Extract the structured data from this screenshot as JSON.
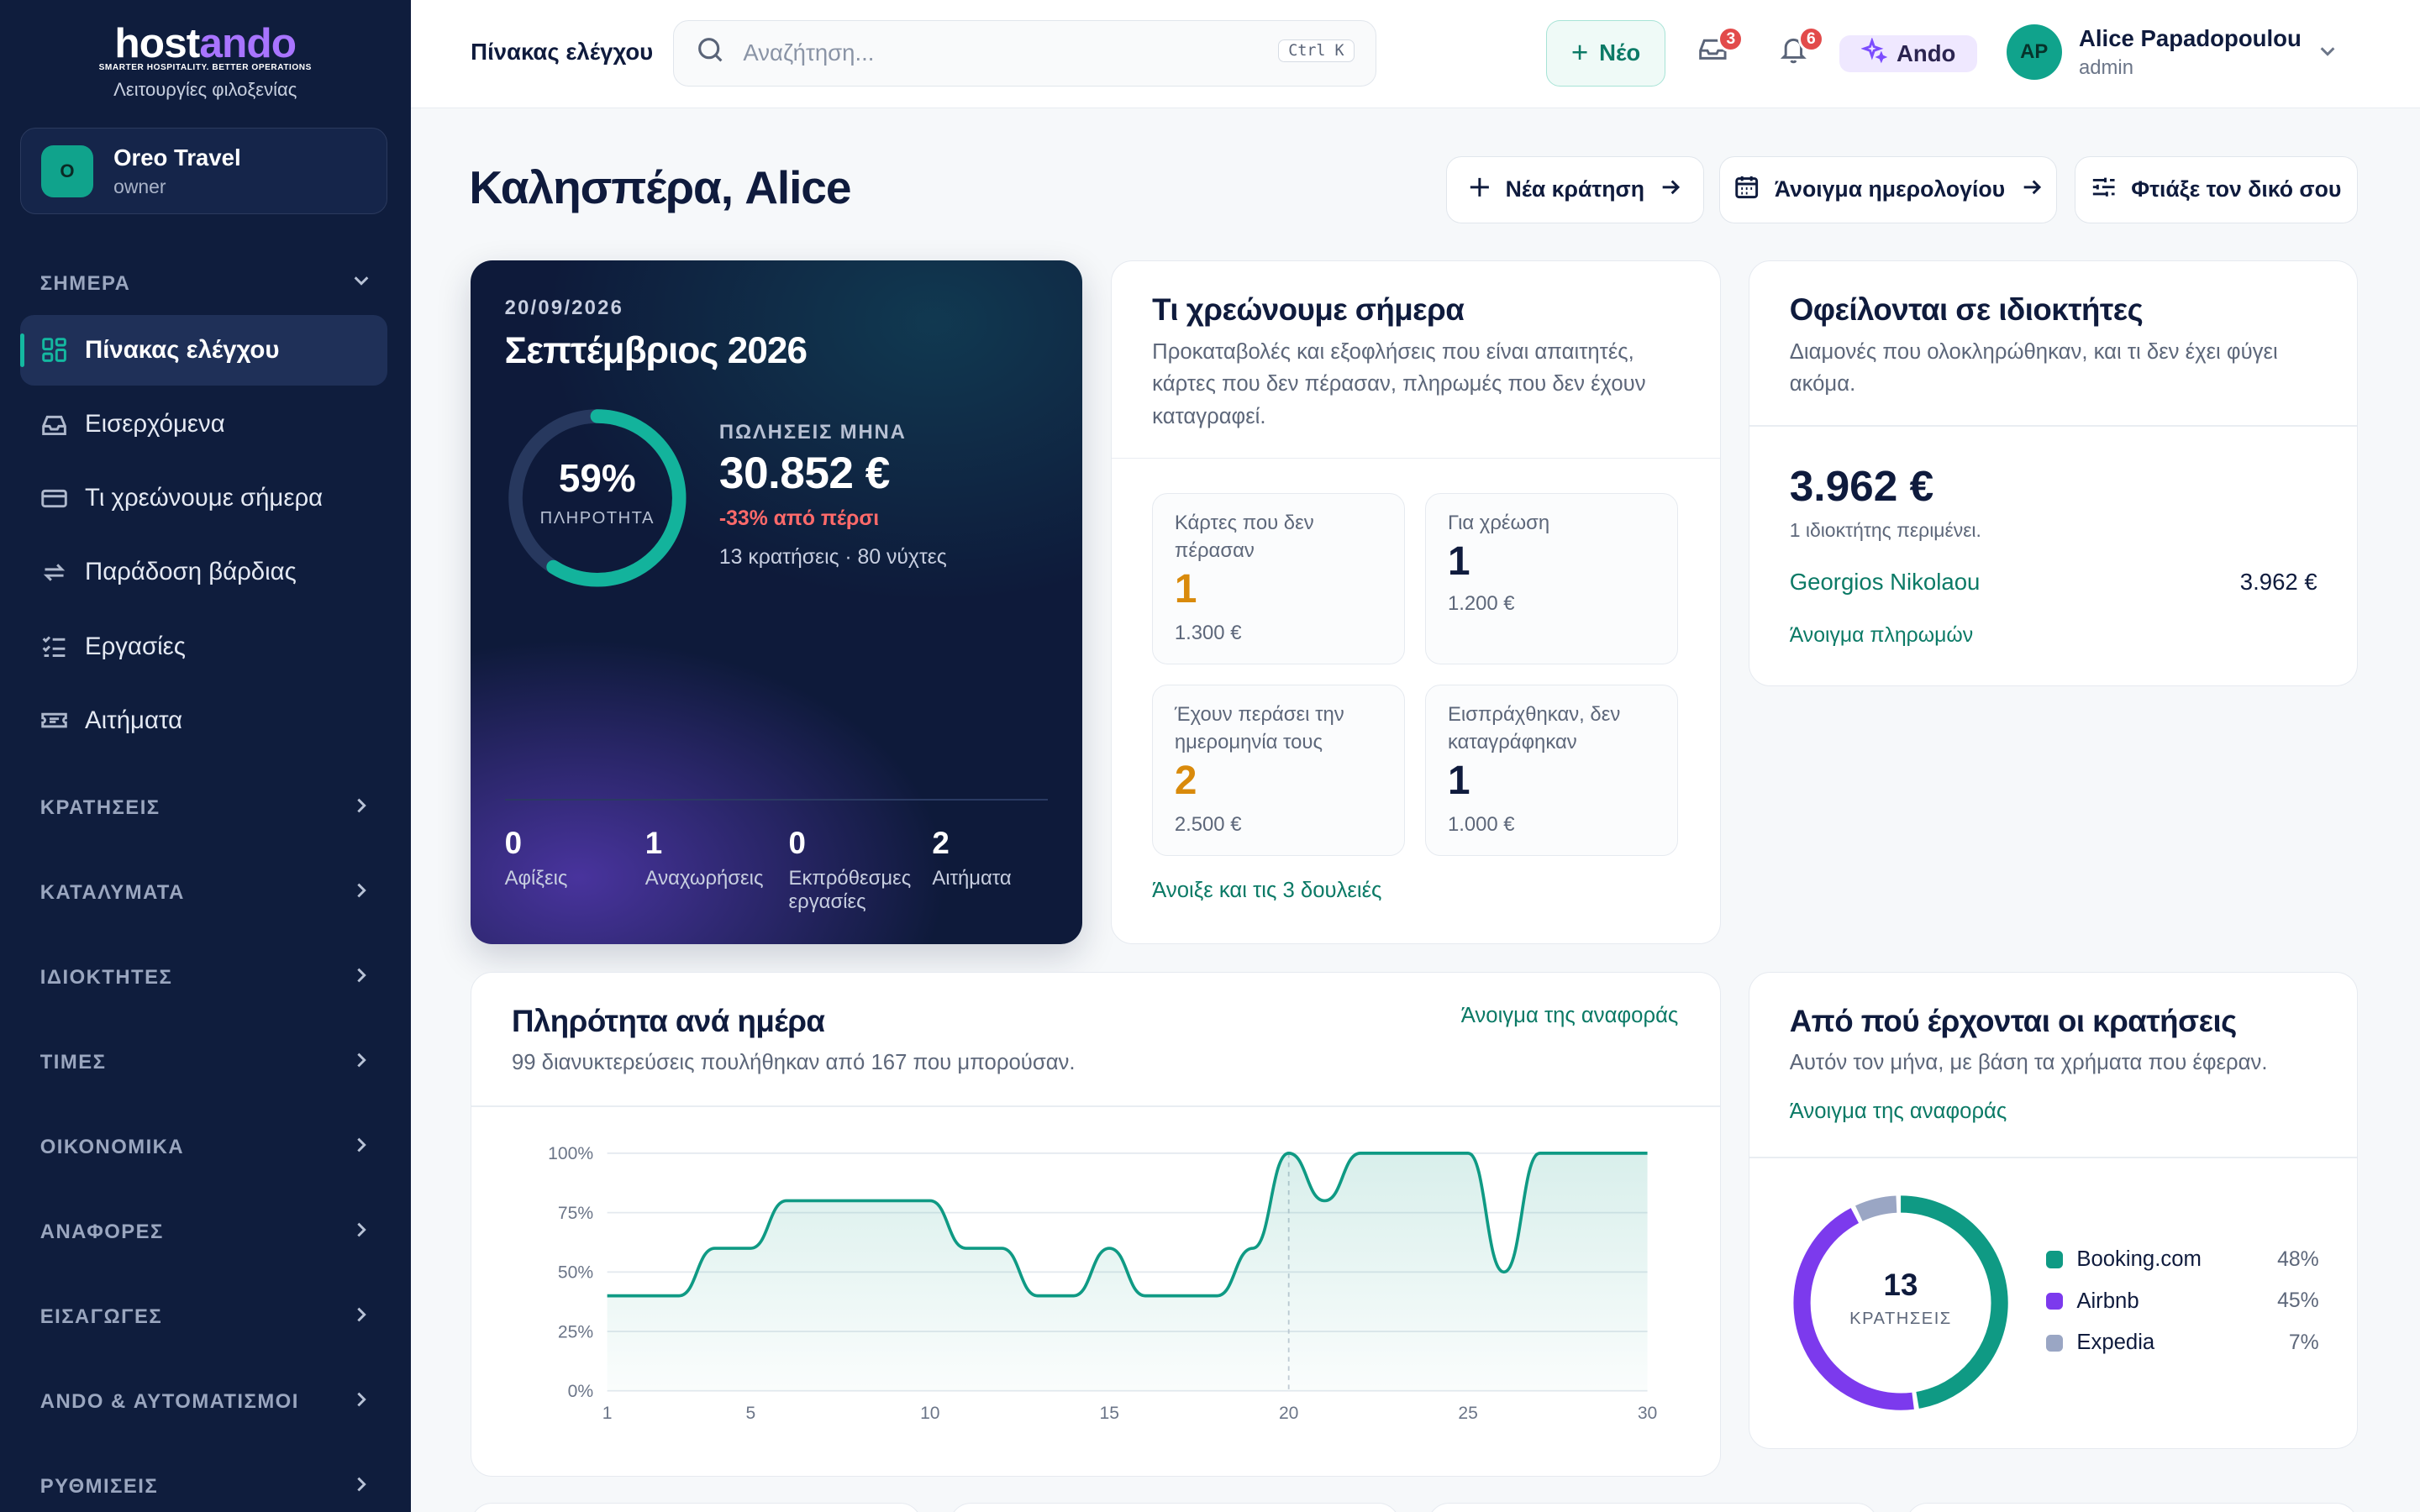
{
  "brand": {
    "logo_a": "host",
    "logo_b": "ando",
    "tagline": "SMARTER HOSPITALITY. BETTER OPERATIONS",
    "subtitle": "Λειτουργίες φιλοξενίας"
  },
  "org": {
    "initial": "O",
    "name": "Oreo Travel",
    "role": "owner"
  },
  "sidebar": {
    "today_section": "ΣΗΜΕΡΑ",
    "items": [
      {
        "label": "Πίνακας ελέγχου",
        "icon": "dashboard-icon",
        "active": true
      },
      {
        "label": "Εισερχόμενα",
        "icon": "inbox-icon"
      },
      {
        "label": "Τι χρεώνουμε σήμερα",
        "icon": "card-icon"
      },
      {
        "label": "Παράδοση βάρδιας",
        "icon": "repeat-icon"
      },
      {
        "label": "Εργασίες",
        "icon": "checklist-icon"
      },
      {
        "label": "Αιτήματα",
        "icon": "ticket-icon"
      }
    ],
    "sections": [
      "ΚΡΑΤΗΣΕΙΣ",
      "ΚΑΤΑΛΥΜΑΤΑ",
      "ΙΔΙΟΚΤΗΤΕΣ",
      "ΤΙΜΕΣ",
      "ΟΙΚΟΝΟΜΙΚΑ",
      "ΑΝΑΦΟΡΕΣ",
      "ΕΙΣΑΓΩΓΕΣ",
      "ANDO & ΑΥΤΟΜΑΤΙΣΜΟΙ",
      "ΡΥΘΜΙΣΕΙΣ"
    ]
  },
  "topbar": {
    "title": "Πίνακας ελέγχου",
    "search_placeholder": "Αναζήτηση...",
    "shortcut": "Ctrl K",
    "new_label": "Νέο",
    "inbox_badge": "3",
    "notif_badge": "6",
    "ando_label": "Ando",
    "user": {
      "initials": "AP",
      "name": "Alice Papadopoulou",
      "role": "admin"
    }
  },
  "header": {
    "greeting": "Καλησπέρα, Alice",
    "btn_new_booking": "Νέα κράτηση",
    "btn_calendar": "Άνοιγμα ημερολογίου",
    "btn_custom": "Φτιάξε τον δικό σου"
  },
  "month_card": {
    "date": "20/09/2026",
    "title": "Σεπτέμβριος 2026",
    "occupancy_pct": "59%",
    "occupancy_value": 0.59,
    "occupancy_label": "ΠΛΗΡΟΤΗΤΑ",
    "sales_label": "ΠΩΛΗΣΕΙΣ ΜΗΝΑ",
    "sales_value": "30.852 €",
    "sales_delta": "-33% από πέρσι",
    "sales_meta": "13 κρατήσεις · 80 νύχτες",
    "kpis": [
      {
        "value": "0",
        "label": "Αφίξεις"
      },
      {
        "value": "1",
        "label": "Αναχωρήσεις"
      },
      {
        "value": "0",
        "label": "Εκπρόθεσμες εργασίες"
      },
      {
        "value": "2",
        "label": "Αιτήματα"
      }
    ]
  },
  "charge_card": {
    "title": "Τι χρεώνουμε σήμερα",
    "subtitle": "Προκαταβολές και εξοφλήσεις που είναι απαιτητές, κάρτες που δεν πέρασαν, πληρωμές που δεν έχουν καταγραφεί.",
    "tiles": [
      {
        "label": "Κάρτες που δεν πέρασαν",
        "count": "1",
        "amount": "1.300 €",
        "color": "#d98a0b"
      },
      {
        "label": "Για χρέωση",
        "count": "1",
        "amount": "1.200 €",
        "color": "#0f1b3d"
      },
      {
        "label": "Έχουν περάσει την ημερομηνία τους",
        "count": "2",
        "amount": "2.500 €",
        "color": "#d98a0b"
      },
      {
        "label": "Εισπράχθηκαν, δεν καταγράφηκαν",
        "count": "1",
        "amount": "1.000 €",
        "color": "#0f1b3d"
      }
    ],
    "link": "Άνοιξε και τις 3 δουλειές"
  },
  "owners_card": {
    "title": "Οφείλονται σε ιδιοκτήτες",
    "subtitle": "Διαμονές που ολοκληρώθηκαν, και τι δεν έχει φύγει ακόμα.",
    "total": "3.962 €",
    "waiting": "1 ιδιοκτήτης περιμένει.",
    "owner_name": "Georgios Nikolaou",
    "owner_amount": "3.962 €",
    "link": "Άνοιγμα πληρωμών"
  },
  "occupancy_card": {
    "title": "Πληρότητα ανά ημέρα",
    "subtitle": "99 διανυκτερεύσεις πουλήθηκαν από 167 που μπορούσαν.",
    "link": "Άνοιγμα της αναφοράς"
  },
  "chart_data": {
    "type": "area",
    "x": [
      1,
      2,
      3,
      4,
      5,
      6,
      7,
      8,
      9,
      10,
      11,
      12,
      13,
      14,
      15,
      16,
      17,
      18,
      19,
      20,
      21,
      22,
      23,
      24,
      25,
      26,
      27,
      28,
      29,
      30
    ],
    "values": [
      40,
      40,
      40,
      60,
      60,
      80,
      80,
      80,
      80,
      80,
      60,
      60,
      40,
      40,
      60,
      40,
      40,
      40,
      60,
      100,
      80,
      100,
      100,
      100,
      100,
      50,
      100,
      100,
      100,
      100
    ],
    "xticks": [
      "1",
      "5",
      "10",
      "15",
      "20",
      "25",
      "30"
    ],
    "yticks": [
      "0%",
      "25%",
      "50%",
      "75%",
      "100%"
    ],
    "ylim": [
      0,
      100
    ],
    "marker_x": 20,
    "color": "#0f9a84"
  },
  "sources_card": {
    "title": "Από πού έρχονται οι κρατήσεις",
    "subtitle": "Αυτόν τον μήνα, με βάση τα χρήματα που έφεραν.",
    "link": "Άνοιγμα της αναφοράς",
    "total": "13",
    "total_label": "ΚΡΑΤΗΣΕΙΣ",
    "sources": [
      {
        "name": "Booking.com",
        "pct": "48%",
        "value": 48,
        "color": "#0f9a84"
      },
      {
        "name": "Airbnb",
        "pct": "45%",
        "value": 45,
        "color": "#7c3aed"
      },
      {
        "name": "Expedia",
        "pct": "7%",
        "value": 7,
        "color": "#9aa6c4"
      }
    ]
  }
}
